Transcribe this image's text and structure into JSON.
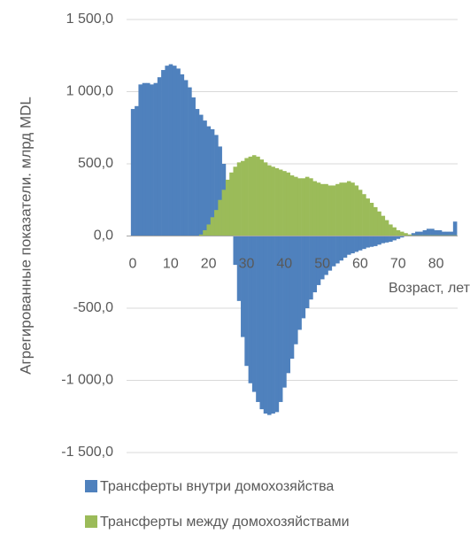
{
  "chart_data": {
    "type": "bar",
    "y_label": "Агрегированные показатели. млрд MDL",
    "x_label": "Возраст, лет",
    "x": [
      0,
      1,
      2,
      3,
      4,
      5,
      6,
      7,
      8,
      9,
      10,
      11,
      12,
      13,
      14,
      15,
      16,
      17,
      18,
      19,
      20,
      21,
      22,
      23,
      24,
      25,
      26,
      27,
      28,
      29,
      30,
      31,
      32,
      33,
      34,
      35,
      36,
      37,
      38,
      39,
      40,
      41,
      42,
      43,
      44,
      45,
      46,
      47,
      48,
      49,
      50,
      51,
      52,
      53,
      54,
      55,
      56,
      57,
      58,
      59,
      60,
      61,
      62,
      63,
      64,
      65,
      66,
      67,
      68,
      69,
      70,
      71,
      72,
      73,
      74,
      75,
      76,
      77,
      78,
      79,
      80,
      81,
      82,
      83,
      84,
      85
    ],
    "series": [
      {
        "name": "Трансферты внутри домохозяйства",
        "color": "#4f81bd",
        "values": [
          880,
          900,
          1050,
          1060,
          1060,
          1050,
          1060,
          1100,
          1150,
          1180,
          1190,
          1180,
          1160,
          1120,
          1080,
          1030,
          960,
          880,
          840,
          800,
          760,
          740,
          700,
          620,
          500,
          300,
          100,
          -200,
          -450,
          -700,
          -900,
          -1020,
          -1080,
          -1150,
          -1200,
          -1230,
          -1240,
          -1230,
          -1220,
          -1150,
          -1050,
          -950,
          -850,
          -750,
          -650,
          -570,
          -500,
          -440,
          -390,
          -340,
          -300,
          -270,
          -240,
          -210,
          -190,
          -170,
          -150,
          -130,
          -120,
          -110,
          -100,
          -90,
          -80,
          -75,
          -70,
          -60,
          -50,
          -45,
          -40,
          -30,
          -20,
          -10,
          0,
          10,
          20,
          30,
          30,
          40,
          50,
          50,
          40,
          40,
          30,
          30,
          30,
          100
        ]
      },
      {
        "name": "Трансферты между домохозяйствами",
        "color": "#9bbb59",
        "values": [
          0,
          0,
          0,
          0,
          0,
          0,
          0,
          0,
          0,
          0,
          0,
          0,
          0,
          0,
          0,
          0,
          0,
          0,
          10,
          40,
          80,
          130,
          180,
          250,
          320,
          390,
          440,
          480,
          510,
          520,
          540,
          550,
          560,
          550,
          530,
          510,
          490,
          480,
          470,
          460,
          450,
          440,
          420,
          410,
          400,
          400,
          410,
          400,
          380,
          370,
          360,
          360,
          350,
          350,
          360,
          370,
          370,
          380,
          370,
          350,
          320,
          290,
          260,
          230,
          200,
          170,
          140,
          110,
          80,
          60,
          40,
          30,
          20,
          10,
          5,
          5,
          5,
          5,
          5,
          5,
          5,
          5,
          5,
          5,
          5,
          5
        ]
      }
    ],
    "xlim": [
      0,
      85
    ],
    "xticks": [
      0,
      10,
      20,
      30,
      40,
      50,
      60,
      70,
      80
    ],
    "ylim": [
      -1500,
      1500
    ],
    "yticks": [
      {
        "value": -1500,
        "label": "-1 500,0"
      },
      {
        "value": -1000,
        "label": "-1 000,0"
      },
      {
        "value": -500,
        "label": "-500,0"
      },
      {
        "value": 0,
        "label": "0,0"
      },
      {
        "value": 500,
        "label": "500,0"
      },
      {
        "value": 1000,
        "label": "1 000,0"
      },
      {
        "value": 1500,
        "label": "1 500,0"
      }
    ],
    "grid": true,
    "legend": "bottom"
  }
}
